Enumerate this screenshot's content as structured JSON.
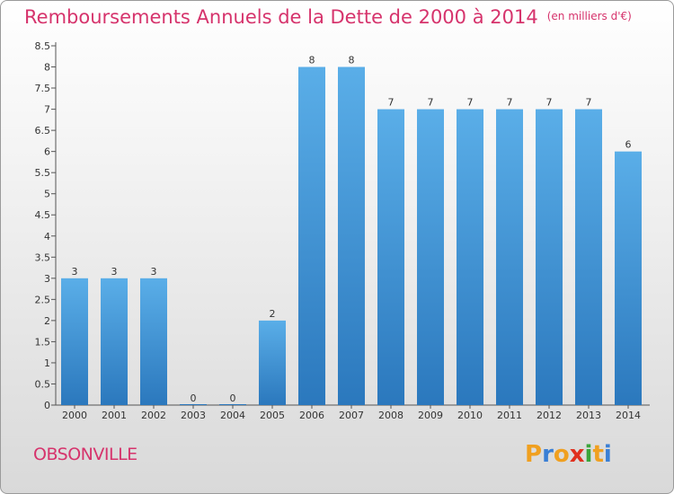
{
  "header": {
    "title": "Remboursements Annuels de la Dette de 2000 à 2014",
    "unit": "(en milliers d'€)"
  },
  "commune": "OBSONVILLE",
  "logo": {
    "letters": [
      "P",
      "r",
      "o",
      "x",
      "i",
      "t",
      "i"
    ],
    "colors": [
      "#f0a020",
      "#3a7fd5",
      "#f0a020",
      "#e0301e",
      "#3aa53a",
      "#f0a020",
      "#3a7fd5"
    ]
  },
  "chart_data": {
    "type": "bar",
    "title": "Remboursements Annuels de la Dette de 2000 à 2014",
    "ylabel": "(en milliers d'€)",
    "xlabel": "",
    "categories": [
      "2000",
      "2001",
      "2002",
      "2003",
      "2004",
      "2005",
      "2006",
      "2007",
      "2008",
      "2009",
      "2010",
      "2011",
      "2012",
      "2013",
      "2014"
    ],
    "values": [
      3,
      3,
      3,
      0,
      0,
      2,
      8,
      8,
      7,
      7,
      7,
      7,
      7,
      7,
      6
    ],
    "data_labels": [
      "3",
      "3",
      "3",
      "0",
      "0",
      "2",
      "8",
      "8",
      "7",
      "7",
      "7",
      "7",
      "7",
      "7",
      "6"
    ],
    "ylim": [
      0,
      8.5
    ],
    "yticks": [
      0,
      0.5,
      1,
      1.5,
      2,
      2.5,
      3,
      3.5,
      4,
      4.5,
      5,
      5.5,
      6,
      6.5,
      7,
      7.5,
      8,
      8.5
    ],
    "ytick_labels": [
      "0",
      "0.5",
      "1",
      "1.5",
      "2",
      "2.5",
      "3",
      "3.5",
      "4",
      "4.5",
      "5",
      "5.5",
      "6",
      "6.5",
      "7",
      "7.5",
      "8",
      "8.5"
    ],
    "grid": false,
    "bar_color_top": "#5aaee8",
    "bar_color_bottom": "#2b78bd"
  }
}
